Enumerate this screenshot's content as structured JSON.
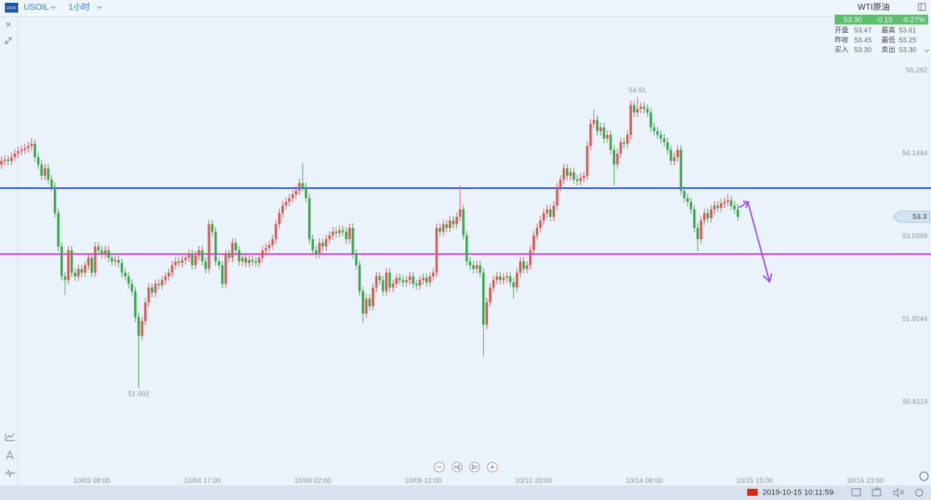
{
  "header": {
    "symbol": "USOIL",
    "interval": "1小时"
  },
  "panel": {
    "name": "WTI原油",
    "price": "53.30",
    "change": "-0.15",
    "change_pct": "-0.27%",
    "rows": [
      [
        "开盘",
        "53.47",
        "最高",
        "53.61"
      ],
      [
        "昨收",
        "53.45",
        "最低",
        "53.25"
      ],
      [
        "买入",
        "53.30",
        "卖出",
        "53.30"
      ]
    ]
  },
  "status": {
    "datetime": "2019-10-15 10:11:59"
  },
  "chart_data": {
    "type": "candlestick",
    "up_color": "#e3554f",
    "down_color": "#3aa848",
    "ylim": [
      49.826,
      55.985
    ],
    "yticks": [
      50.8119,
      51.9244,
      53.0369,
      54.1494,
      55.262
    ],
    "xlim": [
      -0.42,
      277.7
    ],
    "xticks": [
      {
        "value": 27,
        "label": "10/03 08:00"
      },
      {
        "value": 60,
        "label": "10/04 17:00"
      },
      {
        "value": 93,
        "label": "10/08 02:00"
      },
      {
        "value": 126,
        "label": "10/09 12:00"
      },
      {
        "value": 159,
        "label": "10/10 20:00"
      },
      {
        "value": 192,
        "label": "10/14 06:00"
      },
      {
        "value": 225,
        "label": "10/15 15:00"
      },
      {
        "value": 258,
        "label": "10/16 23:00"
      }
    ],
    "grid": false,
    "current_price": 53.3,
    "annotations": [
      54.91,
      51.002
    ],
    "lines": [
      {
        "value": 53.685,
        "color": "#1d3ed6"
      },
      {
        "value": 52.8,
        "color": "#e21fd6"
      }
    ],
    "ohlc": [
      [
        54.0,
        54.11,
        53.94,
        54.05
      ],
      [
        54.05,
        54.13,
        53.99,
        54.07
      ],
      [
        54.07,
        54.12,
        53.99,
        54.05
      ],
      [
        54.05,
        54.16,
        53.99,
        54.1
      ],
      [
        54.1,
        54.21,
        54.04,
        54.15
      ],
      [
        54.15,
        54.24,
        54.09,
        54.18
      ],
      [
        54.18,
        54.26,
        54.12,
        54.2
      ],
      [
        54.2,
        54.28,
        54.14,
        54.22
      ],
      [
        54.22,
        54.31,
        54.16,
        54.25
      ],
      [
        54.25,
        54.36,
        54.19,
        54.28
      ],
      [
        54.28,
        54.34,
        54.04,
        54.1
      ],
      [
        54.1,
        54.16,
        53.94,
        54.0
      ],
      [
        54.0,
        54.06,
        53.79,
        53.85
      ],
      [
        53.85,
        54.01,
        53.79,
        53.95
      ],
      [
        53.95,
        54.01,
        53.74,
        53.8
      ],
      [
        53.8,
        53.86,
        53.64,
        53.7
      ],
      [
        53.7,
        53.76,
        53.29,
        53.35
      ],
      [
        53.35,
        53.41,
        52.84,
        52.9
      ],
      [
        52.9,
        52.96,
        52.44,
        52.5
      ],
      [
        52.5,
        52.56,
        52.25,
        52.45
      ],
      [
        52.45,
        52.91,
        52.39,
        52.85
      ],
      [
        52.85,
        52.91,
        52.49,
        52.55
      ],
      [
        52.55,
        52.61,
        52.44,
        52.5
      ],
      [
        52.5,
        52.66,
        52.44,
        52.6
      ],
      [
        52.6,
        52.66,
        52.49,
        52.55
      ],
      [
        52.55,
        52.71,
        52.49,
        52.65
      ],
      [
        52.65,
        52.81,
        52.59,
        52.75
      ],
      [
        52.75,
        52.81,
        52.49,
        52.55
      ],
      [
        52.55,
        52.96,
        52.49,
        52.9
      ],
      [
        52.9,
        52.96,
        52.79,
        52.85
      ],
      [
        52.85,
        52.91,
        52.74,
        52.8
      ],
      [
        52.8,
        52.91,
        52.74,
        52.85
      ],
      [
        52.85,
        52.91,
        52.69,
        52.75
      ],
      [
        52.75,
        52.81,
        52.64,
        52.7
      ],
      [
        52.7,
        52.78,
        52.64,
        52.72
      ],
      [
        52.72,
        52.78,
        52.62,
        52.68
      ],
      [
        52.68,
        52.74,
        52.49,
        52.55
      ],
      [
        52.55,
        52.61,
        52.44,
        52.5
      ],
      [
        52.5,
        52.56,
        52.34,
        52.4
      ],
      [
        52.4,
        52.46,
        52.24,
        52.3
      ],
      [
        52.3,
        52.36,
        51.89,
        51.95
      ],
      [
        51.95,
        52.01,
        51.002,
        51.7
      ],
      [
        51.7,
        51.96,
        51.64,
        51.9
      ],
      [
        51.9,
        52.21,
        51.84,
        52.15
      ],
      [
        52.15,
        52.41,
        52.09,
        52.35
      ],
      [
        52.35,
        52.41,
        52.22,
        52.28
      ],
      [
        52.28,
        52.46,
        52.22,
        52.4
      ],
      [
        52.4,
        52.46,
        52.32,
        52.38
      ],
      [
        52.38,
        52.51,
        52.32,
        52.45
      ],
      [
        52.45,
        52.56,
        52.39,
        52.5
      ],
      [
        52.5,
        52.61,
        52.44,
        52.55
      ],
      [
        52.55,
        52.71,
        52.49,
        52.65
      ],
      [
        52.65,
        52.76,
        52.59,
        52.7
      ],
      [
        52.7,
        52.76,
        52.62,
        52.68
      ],
      [
        52.68,
        52.78,
        52.62,
        52.72
      ],
      [
        52.72,
        52.78,
        52.66,
        52.75
      ],
      [
        52.75,
        52.86,
        52.69,
        52.8
      ],
      [
        52.8,
        52.86,
        52.59,
        52.65
      ],
      [
        52.65,
        52.84,
        52.59,
        52.78
      ],
      [
        52.78,
        52.91,
        52.72,
        52.85
      ],
      [
        52.85,
        52.91,
        52.64,
        52.7
      ],
      [
        52.7,
        52.76,
        52.54,
        52.6
      ],
      [
        52.6,
        53.26,
        52.54,
        53.2
      ],
      [
        53.2,
        53.26,
        53.04,
        53.1
      ],
      [
        53.1,
        53.16,
        52.64,
        52.7
      ],
      [
        52.7,
        52.76,
        52.59,
        52.65
      ],
      [
        52.65,
        52.71,
        52.34,
        52.4
      ],
      [
        52.4,
        52.86,
        52.34,
        52.8
      ],
      [
        52.8,
        52.86,
        52.69,
        52.75
      ],
      [
        52.75,
        53.01,
        52.69,
        52.95
      ],
      [
        52.95,
        53.01,
        52.79,
        52.85
      ],
      [
        52.85,
        52.91,
        52.64,
        52.7
      ],
      [
        52.7,
        52.81,
        52.64,
        52.75
      ],
      [
        52.75,
        52.81,
        52.62,
        52.68
      ],
      [
        52.68,
        52.78,
        52.62,
        52.72
      ],
      [
        52.72,
        52.78,
        52.64,
        52.7
      ],
      [
        52.7,
        52.76,
        52.62,
        52.68
      ],
      [
        52.68,
        52.81,
        52.62,
        52.75
      ],
      [
        52.75,
        52.91,
        52.69,
        52.85
      ],
      [
        52.85,
        52.94,
        52.79,
        52.88
      ],
      [
        52.88,
        52.98,
        52.82,
        52.92
      ],
      [
        52.92,
        53.06,
        52.86,
        53.0
      ],
      [
        53.0,
        53.26,
        52.94,
        53.2
      ],
      [
        53.2,
        53.41,
        53.14,
        53.35
      ],
      [
        53.35,
        53.51,
        53.29,
        53.45
      ],
      [
        53.45,
        53.56,
        53.39,
        53.5
      ],
      [
        53.5,
        53.61,
        53.44,
        53.55
      ],
      [
        53.55,
        53.66,
        53.49,
        53.6
      ],
      [
        53.6,
        53.71,
        53.54,
        53.65
      ],
      [
        53.65,
        53.81,
        53.59,
        53.75
      ],
      [
        53.75,
        54.02,
        53.64,
        53.7
      ],
      [
        53.7,
        53.76,
        53.49,
        53.55
      ],
      [
        53.55,
        53.61,
        52.94,
        53.0
      ],
      [
        53.0,
        53.06,
        52.79,
        52.85
      ],
      [
        52.85,
        52.91,
        52.74,
        52.8
      ],
      [
        52.8,
        53.01,
        52.74,
        52.95
      ],
      [
        52.95,
        53.01,
        52.84,
        52.9
      ],
      [
        52.9,
        53.06,
        52.84,
        53.0
      ],
      [
        53.0,
        53.11,
        52.94,
        53.05
      ],
      [
        53.05,
        53.16,
        52.99,
        53.1
      ],
      [
        53.1,
        53.16,
        53.02,
        53.08
      ],
      [
        53.08,
        53.18,
        53.02,
        53.12
      ],
      [
        53.12,
        53.18,
        53.04,
        53.1
      ],
      [
        53.1,
        53.16,
        52.94,
        53.0
      ],
      [
        53.0,
        53.21,
        52.94,
        53.15
      ],
      [
        53.15,
        53.21,
        52.74,
        52.8
      ],
      [
        52.8,
        52.86,
        52.59,
        52.65
      ],
      [
        52.65,
        52.71,
        52.24,
        52.3
      ],
      [
        52.3,
        52.36,
        51.88,
        52.0
      ],
      [
        52.0,
        52.26,
        51.94,
        52.2
      ],
      [
        52.2,
        52.26,
        52.04,
        52.1
      ],
      [
        52.1,
        52.41,
        52.04,
        52.35
      ],
      [
        52.35,
        52.56,
        52.29,
        52.5
      ],
      [
        52.5,
        52.56,
        52.39,
        52.45
      ],
      [
        52.45,
        52.51,
        52.24,
        52.3
      ],
      [
        52.3,
        52.61,
        52.24,
        52.55
      ],
      [
        52.55,
        52.61,
        52.29,
        52.35
      ],
      [
        52.35,
        52.46,
        52.29,
        52.4
      ],
      [
        52.4,
        52.54,
        52.34,
        52.48
      ],
      [
        52.48,
        52.54,
        52.39,
        52.45
      ],
      [
        52.45,
        52.51,
        52.36,
        52.42
      ],
      [
        52.42,
        52.51,
        52.36,
        52.45
      ],
      [
        52.45,
        52.56,
        52.39,
        52.5
      ],
      [
        52.5,
        52.56,
        52.34,
        52.4
      ],
      [
        52.4,
        52.46,
        52.32,
        52.38
      ],
      [
        52.38,
        52.51,
        52.32,
        52.45
      ],
      [
        52.45,
        52.54,
        52.39,
        52.48
      ],
      [
        52.48,
        52.54,
        52.36,
        52.42
      ],
      [
        52.42,
        52.56,
        52.36,
        52.5
      ],
      [
        52.5,
        52.61,
        52.44,
        52.55
      ],
      [
        52.55,
        53.21,
        52.49,
        53.15
      ],
      [
        53.15,
        53.21,
        53.04,
        53.1
      ],
      [
        53.1,
        53.26,
        53.04,
        53.2
      ],
      [
        53.2,
        53.26,
        53.09,
        53.15
      ],
      [
        53.15,
        53.31,
        53.09,
        53.25
      ],
      [
        53.25,
        53.31,
        53.14,
        53.2
      ],
      [
        53.2,
        53.36,
        53.14,
        53.3
      ],
      [
        53.3,
        53.72,
        53.24,
        53.4
      ],
      [
        53.4,
        53.46,
        52.99,
        53.05
      ],
      [
        53.05,
        53.11,
        52.64,
        52.7
      ],
      [
        52.7,
        52.76,
        52.59,
        52.65
      ],
      [
        52.65,
        52.71,
        52.54,
        52.6
      ],
      [
        52.6,
        52.71,
        52.54,
        52.65
      ],
      [
        52.65,
        52.71,
        52.49,
        52.55
      ],
      [
        52.55,
        52.61,
        51.42,
        51.85
      ],
      [
        51.85,
        52.21,
        51.79,
        52.15
      ],
      [
        52.15,
        52.41,
        52.09,
        52.35
      ],
      [
        52.35,
        52.51,
        52.29,
        52.45
      ],
      [
        52.45,
        52.56,
        52.39,
        52.5
      ],
      [
        52.5,
        52.56,
        52.39,
        52.45
      ],
      [
        52.45,
        52.54,
        52.39,
        52.48
      ],
      [
        52.48,
        52.56,
        52.42,
        52.5
      ],
      [
        52.5,
        52.56,
        52.36,
        52.42
      ],
      [
        52.42,
        52.48,
        52.2,
        52.35
      ],
      [
        52.35,
        52.61,
        52.29,
        52.55
      ],
      [
        52.55,
        52.76,
        52.49,
        52.7
      ],
      [
        52.7,
        52.76,
        52.54,
        52.6
      ],
      [
        52.6,
        52.71,
        52.54,
        52.65
      ],
      [
        52.65,
        52.91,
        52.59,
        52.85
      ],
      [
        52.85,
        53.11,
        52.79,
        53.05
      ],
      [
        53.05,
        53.21,
        52.99,
        53.15
      ],
      [
        53.15,
        53.31,
        53.09,
        53.25
      ],
      [
        53.25,
        53.41,
        53.19,
        53.35
      ],
      [
        53.35,
        53.46,
        53.29,
        53.4
      ],
      [
        53.4,
        53.46,
        53.24,
        53.3
      ],
      [
        53.3,
        53.51,
        53.24,
        53.45
      ],
      [
        53.45,
        53.76,
        53.39,
        53.7
      ],
      [
        53.7,
        53.86,
        53.64,
        53.8
      ],
      [
        53.8,
        54.01,
        53.74,
        53.95
      ],
      [
        53.95,
        54.01,
        53.79,
        53.85
      ],
      [
        53.85,
        53.96,
        53.79,
        53.9
      ],
      [
        53.9,
        53.96,
        53.74,
        53.8
      ],
      [
        53.8,
        53.86,
        53.72,
        53.78
      ],
      [
        53.78,
        53.88,
        53.72,
        53.82
      ],
      [
        53.82,
        53.91,
        53.76,
        53.85
      ],
      [
        53.85,
        54.31,
        53.79,
        54.25
      ],
      [
        54.25,
        54.61,
        54.19,
        54.55
      ],
      [
        54.55,
        54.74,
        54.49,
        54.6
      ],
      [
        54.6,
        54.66,
        54.39,
        54.45
      ],
      [
        54.45,
        54.56,
        54.39,
        54.5
      ],
      [
        54.5,
        54.56,
        54.29,
        54.35
      ],
      [
        54.35,
        54.46,
        54.29,
        54.4
      ],
      [
        54.4,
        54.46,
        54.14,
        54.2
      ],
      [
        54.2,
        54.26,
        53.72,
        54.0
      ],
      [
        54.0,
        54.21,
        53.94,
        54.15
      ],
      [
        54.15,
        54.36,
        54.09,
        54.3
      ],
      [
        54.3,
        54.36,
        54.22,
        54.28
      ],
      [
        54.28,
        54.46,
        54.22,
        54.4
      ],
      [
        54.4,
        54.86,
        54.34,
        54.8
      ],
      [
        54.8,
        54.86,
        54.64,
        54.7
      ],
      [
        54.7,
        54.91,
        54.64,
        54.75
      ],
      [
        54.75,
        54.84,
        54.69,
        54.78
      ],
      [
        54.78,
        54.84,
        54.69,
        54.75
      ],
      [
        54.75,
        54.81,
        54.64,
        54.7
      ],
      [
        54.7,
        54.76,
        54.44,
        54.5
      ],
      [
        54.5,
        54.56,
        54.39,
        54.45
      ],
      [
        54.45,
        54.51,
        54.34,
        54.4
      ],
      [
        54.4,
        54.46,
        54.29,
        54.35
      ],
      [
        54.35,
        54.41,
        54.24,
        54.3
      ],
      [
        54.3,
        54.36,
        54.14,
        54.2
      ],
      [
        54.2,
        54.26,
        53.99,
        54.05
      ],
      [
        54.05,
        54.16,
        53.99,
        54.1
      ],
      [
        54.1,
        54.26,
        54.04,
        54.2
      ],
      [
        54.2,
        54.26,
        53.59,
        53.65
      ],
      [
        53.65,
        53.71,
        53.49,
        53.55
      ],
      [
        53.55,
        53.61,
        53.44,
        53.5
      ],
      [
        53.5,
        53.56,
        53.34,
        53.4
      ],
      [
        53.4,
        53.46,
        53.09,
        53.15
      ],
      [
        53.15,
        53.21,
        52.84,
        53.0
      ],
      [
        53.0,
        53.31,
        52.94,
        53.25
      ],
      [
        53.25,
        53.41,
        53.19,
        53.35
      ],
      [
        53.35,
        53.41,
        53.22,
        53.28
      ],
      [
        53.28,
        53.46,
        53.22,
        53.4
      ],
      [
        53.4,
        53.51,
        53.34,
        53.45
      ],
      [
        53.45,
        53.51,
        53.36,
        53.42
      ],
      [
        53.42,
        53.54,
        53.36,
        53.48
      ],
      [
        53.48,
        53.56,
        53.42,
        53.5
      ],
      [
        53.5,
        53.61,
        53.44,
        53.52
      ],
      [
        53.52,
        53.58,
        53.39,
        53.45
      ],
      [
        53.45,
        53.51,
        53.34,
        53.4
      ],
      [
        53.4,
        53.47,
        53.25,
        53.3
      ]
    ]
  }
}
